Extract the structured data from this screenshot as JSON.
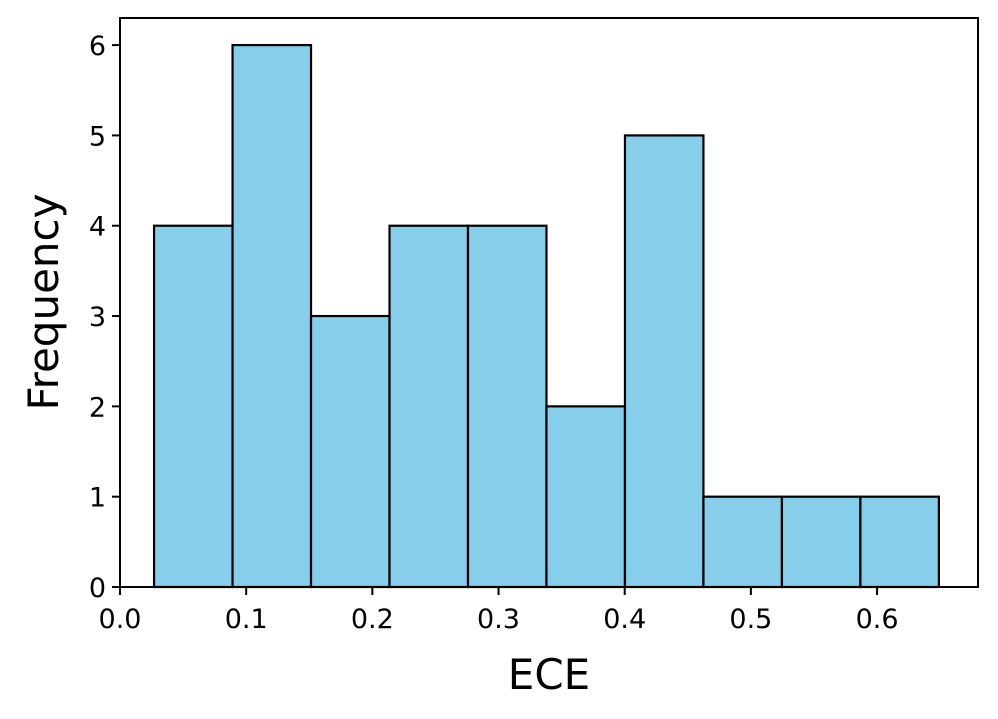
{
  "chart_data": {
    "type": "bar",
    "subtype": "histogram",
    "title": "",
    "xlabel": "ECE",
    "ylabel": "Frequency",
    "bin_edges": [
      0.027,
      0.0892,
      0.1514,
      0.2136,
      0.2758,
      0.338,
      0.4002,
      0.4624,
      0.5246,
      0.5868,
      0.649
    ],
    "values": [
      4,
      6,
      3,
      4,
      4,
      2,
      5,
      1,
      1,
      1
    ],
    "xlim": [
      0.0,
      0.68
    ],
    "ylim": [
      0,
      6.3
    ],
    "xticks": [
      0.0,
      0.1,
      0.2,
      0.3,
      0.4,
      0.5,
      0.6
    ],
    "xtick_labels": [
      "0.0",
      "0.1",
      "0.2",
      "0.3",
      "0.4",
      "0.5",
      "0.6"
    ],
    "yticks": [
      0,
      1,
      2,
      3,
      4,
      5,
      6
    ],
    "ytick_labels": [
      "0",
      "1",
      "2",
      "3",
      "4",
      "5",
      "6"
    ],
    "bar_color": "#87CEEB",
    "edge_color": "#000000",
    "grid": false,
    "legend": "none"
  }
}
